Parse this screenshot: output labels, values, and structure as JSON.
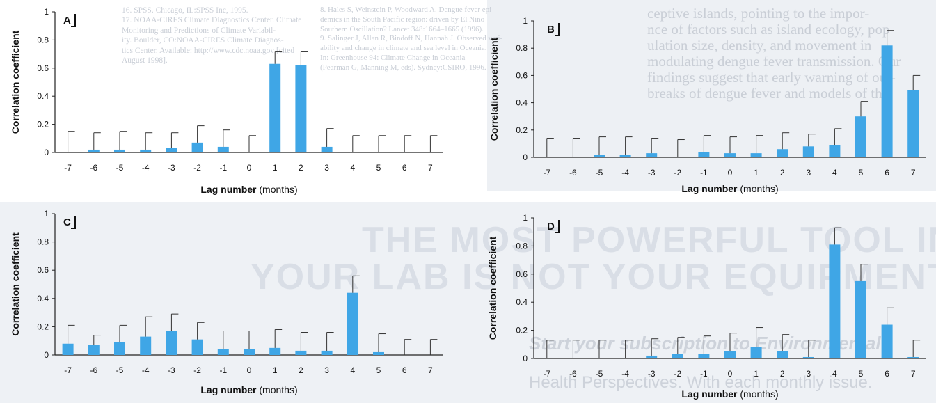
{
  "background": {
    "refs_left": "16. SPSS. Chicago, IL:SPSS Inc, 1995.\n17. NOAA-CIRES Climate Diagnostics Center. Climate\nMonitoring and Predictions of Climate Variabil-\nity. Boulder, CO:NOAA-CIRES Climate Diagnos-\ntics Center. Available: http://www.cdc.noaa.gov [cited\nAugust 1998].",
    "refs_middle": "8.  Hales S, Weinstein P, Woodward A. Dengue fever epi-\ndemics in the South Pacific region: driven by El Niño\nSouthern Oscillation? Lancet 348:1664–1665 (1996).\n9.  Salinger J, Allan R, Bindoff N, Hannah J. Observed vari-\nability and change in climate and sea level in Oceania.\nIn: Greenhouse 94: Climate Change in Oceania\n(Pearman G, Manning M, eds). Sydney:CSIRO, 1996.",
    "body_right": "ceptive islands, pointing to the impor-\nnce of factors such as island ecology, pop-\nulation size, density, and movement in\nmodulating dengue fever transmission. Our\nfindings suggest that early warning of out-\nbreaks of dengue fever and models of the",
    "ad_heading_line1": "THE MOST POWERFUL TOOL IN",
    "ad_heading_line2": "YOUR LAB IS NOT YOUR EQUIPMENT",
    "ad_sub_line1": "Start your subscription to Environmental",
    "ad_sub_line2": "Health Perspectives. With each monthly issue."
  },
  "colors": {
    "bar": "#3fa6e6",
    "axis": "#222222",
    "error_bar": "#333333",
    "page": "#ffffff",
    "page_shaded": "#edf0f4",
    "ghost_text": "#c9ced6"
  },
  "chart_data": [
    {
      "type": "bar",
      "panel": "A",
      "categories": [
        "-7",
        "-6",
        "-5",
        "-4",
        "-3",
        "-2",
        "-1",
        "0",
        "1",
        "2",
        "3",
        "4",
        "5",
        "6",
        "7"
      ],
      "values": [
        0,
        0.02,
        0.02,
        0.02,
        0.03,
        0.07,
        0.04,
        0,
        0.63,
        0.62,
        0.04,
        0,
        0,
        0,
        0
      ],
      "error_upper": [
        0.15,
        0.14,
        0.15,
        0.14,
        0.14,
        0.19,
        0.16,
        0.12,
        0.72,
        0.72,
        0.17,
        0.12,
        0.12,
        0.12,
        0.12
      ],
      "xlabel": "Lag number",
      "xlabel_unit": "(months)",
      "ylabel": "Correlation coefficient",
      "yticks": [
        "0",
        "0.2",
        "0.4",
        "0.6",
        "0.8",
        "1"
      ],
      "ylim": [
        0,
        1
      ],
      "grid": false
    },
    {
      "type": "bar",
      "panel": "B",
      "categories": [
        "-7",
        "-6",
        "-5",
        "-4",
        "-3",
        "-2",
        "-1",
        "0",
        "1",
        "2",
        "3",
        "4",
        "5",
        "6",
        "7"
      ],
      "values": [
        0,
        0,
        0.02,
        0.02,
        0.03,
        0,
        0.04,
        0.03,
        0.03,
        0.06,
        0.08,
        0.09,
        0.3,
        0.82,
        0.49
      ],
      "error_upper": [
        0.14,
        0.14,
        0.15,
        0.15,
        0.14,
        0.13,
        0.16,
        0.15,
        0.16,
        0.18,
        0.17,
        0.21,
        0.41,
        0.93,
        0.6
      ],
      "xlabel": "Lag number",
      "xlabel_unit": "(months)",
      "ylabel": "Correlation coefficient",
      "yticks": [
        "0",
        "0.2",
        "0.4",
        "0.6",
        "0.8",
        "1"
      ],
      "ylim": [
        0,
        1
      ],
      "grid": false
    },
    {
      "type": "bar",
      "panel": "C",
      "categories": [
        "-7",
        "-6",
        "-5",
        "-4",
        "-3",
        "-2",
        "-1",
        "0",
        "1",
        "2",
        "3",
        "4",
        "5",
        "6",
        "7"
      ],
      "values": [
        0.08,
        0.07,
        0.09,
        0.13,
        0.17,
        0.11,
        0.04,
        0.04,
        0.05,
        0.03,
        0.03,
        0.44,
        0.02,
        0,
        0
      ],
      "error_upper": [
        0.21,
        0.14,
        0.21,
        0.27,
        0.29,
        0.23,
        0.17,
        0.17,
        0.18,
        0.16,
        0.16,
        0.56,
        0.15,
        0.11,
        0.11
      ],
      "xlabel": "Lag number",
      "xlabel_unit": "(months)",
      "ylabel": "Correlation coefficient",
      "yticks": [
        "0",
        "0.2",
        "0.4",
        "0.6",
        "0.8",
        "1"
      ],
      "ylim": [
        0,
        1
      ],
      "grid": false
    },
    {
      "type": "bar",
      "panel": "D",
      "categories": [
        "-7",
        "-6",
        "-5",
        "-4",
        "-3",
        "-2",
        "-1",
        "0",
        "1",
        "2",
        "3",
        "4",
        "5",
        "6",
        "7"
      ],
      "values": [
        0,
        0,
        0,
        0,
        0.02,
        0.03,
        0.03,
        0.05,
        0.08,
        0.05,
        0.01,
        0.81,
        0.55,
        0.24,
        0.01
      ],
      "error_upper": [
        0.13,
        0.13,
        0.13,
        0.13,
        0.14,
        0.15,
        0.16,
        0.18,
        0.22,
        0.17,
        0.13,
        0.93,
        0.67,
        0.36,
        0.13
      ],
      "xlabel": "Lag number",
      "xlabel_unit": "(months)",
      "ylabel": "Correlation coefficient",
      "yticks": [
        "0",
        "0.2",
        "0.4",
        "0.6",
        "0.8",
        "1"
      ],
      "ylim": [
        0,
        1
      ],
      "grid": false
    }
  ]
}
